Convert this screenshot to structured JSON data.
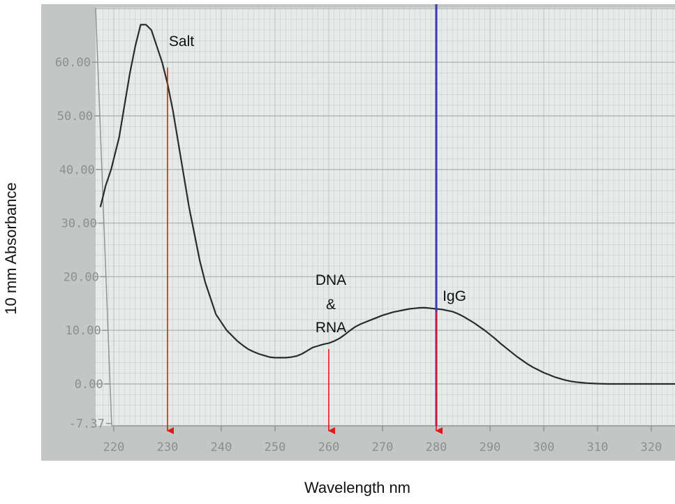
{
  "chart_data": {
    "type": "line",
    "xlabel": "Wavelength nm",
    "ylabel": "10 mm Absorbance",
    "xlim": [
      218,
      328
    ],
    "ylim": [
      -7.37,
      70
    ],
    "x_ticks": [
      220,
      230,
      240,
      250,
      260,
      270,
      280,
      290,
      300,
      310,
      320
    ],
    "x_tick_labels": [
      "220",
      "230",
      "240",
      "250",
      "260",
      "270",
      "280",
      "290",
      "300",
      "310",
      "320"
    ],
    "y_ticks": [
      -7.37,
      0,
      10,
      20,
      30,
      40,
      50,
      60
    ],
    "y_tick_labels": [
      "-7.37",
      "0.00",
      "10.00",
      "20.00",
      "30.00",
      "40.00",
      "50.00",
      "60.00"
    ],
    "grid": true,
    "series": [
      {
        "x": [
          217.5,
          218.5,
          219.5,
          220,
          221,
          222,
          223,
          224,
          225,
          226,
          227,
          228,
          229,
          230,
          231,
          232,
          233,
          234,
          235,
          236,
          237,
          238,
          239,
          240,
          241,
          242,
          243,
          244,
          245,
          246,
          247,
          248,
          249,
          250,
          251,
          252,
          253,
          254,
          255,
          256,
          257,
          258,
          259,
          260,
          261,
          262,
          263,
          264,
          265,
          266,
          267,
          268,
          269,
          270,
          271,
          272,
          273,
          274,
          275,
          276,
          277,
          278,
          279,
          280,
          281,
          282,
          283,
          284,
          285,
          286,
          287,
          288,
          289,
          290,
          291,
          292,
          293,
          294,
          295,
          296,
          297,
          298,
          299,
          300,
          301,
          302,
          303,
          304,
          305,
          306,
          307,
          308,
          310,
          312,
          315,
          318,
          320,
          322,
          325,
          328
        ],
        "y": [
          33,
          37,
          40,
          42,
          46,
          52,
          58,
          63,
          67,
          67,
          66,
          63,
          60,
          56,
          51,
          45,
          39,
          33,
          28,
          23,
          19,
          16,
          13,
          11.5,
          10,
          9,
          8,
          7.2,
          6.5,
          6,
          5.6,
          5.3,
          5,
          4.9,
          4.9,
          4.9,
          5,
          5.2,
          5.6,
          6.2,
          6.8,
          7.1,
          7.4,
          7.6,
          8,
          8.5,
          9.2,
          10,
          10.7,
          11.2,
          11.6,
          12,
          12.4,
          12.8,
          13.1,
          13.4,
          13.6,
          13.8,
          14,
          14.1,
          14.2,
          14.2,
          14.1,
          14,
          13.9,
          13.7,
          13.5,
          13.1,
          12.6,
          12,
          11.4,
          10.7,
          10,
          9.2,
          8.4,
          7.5,
          6.7,
          5.9,
          5.1,
          4.4,
          3.7,
          3.1,
          2.6,
          2.1,
          1.7,
          1.3,
          1,
          0.7,
          0.5,
          0.35,
          0.25,
          0.15,
          0.05,
          0,
          0,
          0,
          0,
          0,
          0,
          0
        ]
      }
    ],
    "cursor_x": 280,
    "annotations": [
      {
        "text": "Salt",
        "x": 230,
        "y_start": 59
      },
      {
        "text": "DNA",
        "x": 260,
        "y_start": 6.5
      },
      {
        "text": "&",
        "x": 260
      },
      {
        "text": "RNA",
        "x": 260
      },
      {
        "text": "IgG",
        "x": 280,
        "y_start": 13.5
      }
    ],
    "colors": {
      "curve": "#2b2b2b",
      "cursor": "#3a3ab0",
      "arrow": "#e01818",
      "grid": "#a6abab",
      "plot_bg": "#e6ebe9",
      "outer_bg": "#c3c6c5"
    }
  }
}
